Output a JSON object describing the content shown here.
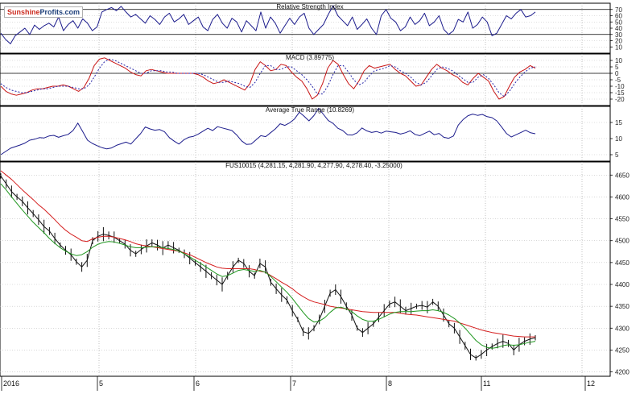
{
  "logo": {
    "part1": "Sunshine",
    "part2": "Profits.com"
  },
  "chart_data": [
    {
      "type": "line",
      "title": "Relative Strength Index",
      "ylim": [
        0,
        80
      ],
      "yticks": [
        "70",
        "60",
        "50",
        "40",
        "30",
        "20",
        "10"
      ],
      "reference_lines": [
        30,
        70
      ],
      "series": [
        {
          "color": "#1c1c8c",
          "values": [
            32,
            22,
            15,
            28,
            34,
            40,
            30,
            45,
            38,
            44,
            48,
            42,
            58,
            36,
            46,
            52,
            40,
            55,
            48,
            36,
            42,
            66,
            70,
            73,
            68,
            75,
            66,
            58,
            62,
            55,
            48,
            60,
            54,
            46,
            58,
            64,
            50,
            55,
            62,
            46,
            52,
            58,
            42,
            36,
            54,
            62,
            48,
            40,
            56,
            50,
            34,
            52,
            44,
            36,
            66,
            40,
            58,
            48,
            32,
            44,
            56,
            46,
            58,
            64,
            40,
            30,
            38,
            46,
            62,
            76,
            60,
            52,
            44,
            58,
            38,
            46,
            55,
            40,
            30,
            60,
            70,
            56,
            50,
            36,
            42,
            58,
            46,
            52,
            64,
            44,
            50,
            60,
            38,
            30,
            36,
            54,
            50,
            66,
            40,
            46,
            58,
            50,
            28,
            32,
            46,
            60,
            55,
            64,
            70,
            58,
            60,
            66
          ]
        }
      ]
    },
    {
      "type": "line",
      "title": "MACD (3.89775)",
      "ylim": [
        -25,
        15
      ],
      "yticks": [
        "10",
        "5",
        "0",
        "-5",
        "-10",
        "-15",
        "-20"
      ],
      "series": [
        {
          "color": "#c81414",
          "values": [
            -10,
            -14,
            -16,
            -17,
            -16,
            -15,
            -13,
            -12,
            -12,
            -11,
            -10,
            -10,
            -9,
            -10,
            -12,
            -14,
            -11,
            -4,
            6,
            11,
            12,
            10,
            8,
            6,
            4,
            1,
            -1,
            -2,
            2,
            3,
            2,
            1,
            0,
            0,
            0,
            0,
            0,
            0,
            -1,
            -3,
            -6,
            -8,
            -7,
            -5,
            -7,
            -9,
            -11,
            -13,
            -8,
            3,
            9,
            6,
            2,
            3,
            7,
            6,
            1,
            -3,
            -6,
            -12,
            -20,
            -17,
            -8,
            4,
            10,
            7,
            -1,
            -8,
            -12,
            -6,
            2,
            6,
            4,
            5,
            6,
            7,
            3,
            0,
            -2,
            -6,
            -10,
            -9,
            -3,
            3,
            7,
            4,
            2,
            -1,
            -3,
            -7,
            -9,
            -4,
            0,
            -3,
            -6,
            -14,
            -20,
            -18,
            -10,
            -3,
            1,
            3,
            6,
            4
          ]
        },
        {
          "color": "#2424a8",
          "dashed": true,
          "values": [
            -8,
            -11,
            -13,
            -14,
            -15,
            -15,
            -14,
            -13,
            -12,
            -12,
            -11,
            -10,
            -10,
            -10,
            -11,
            -12,
            -12,
            -9,
            -3,
            4,
            9,
            11,
            10,
            8,
            6,
            4,
            2,
            0,
            0,
            2,
            2,
            2,
            1,
            1,
            0,
            0,
            0,
            0,
            0,
            -1,
            -3,
            -5,
            -7,
            -7,
            -6,
            -7,
            -8,
            -10,
            -11,
            -7,
            0,
            6,
            6,
            3,
            3,
            5,
            5,
            2,
            -1,
            -5,
            -10,
            -16,
            -16,
            -10,
            -1,
            6,
            6,
            1,
            -5,
            -9,
            -7,
            -2,
            2,
            3,
            4,
            6,
            5,
            2,
            0,
            -3,
            -7,
            -9,
            -7,
            -2,
            3,
            5,
            4,
            2,
            -1,
            -4,
            -7,
            -7,
            -3,
            -1,
            -4,
            -9,
            -15,
            -18,
            -14,
            -8,
            -3,
            1,
            4,
            5
          ]
        }
      ]
    },
    {
      "type": "line",
      "title": "Average True Range (10.8269)",
      "ylim": [
        3,
        20
      ],
      "yticks": [
        "15",
        "10",
        "5"
      ],
      "series": [
        {
          "color": "#1c1c8c",
          "values": [
            5,
            6,
            7,
            7.5,
            8,
            8.6,
            9.5,
            9.8,
            10.3,
            10.2,
            10.8,
            11,
            10.4,
            10.9,
            11.3,
            12.5,
            14.8,
            12.2,
            9.5,
            8.5,
            7.8,
            7.2,
            6.8,
            7.1,
            7.9,
            8.4,
            8.9,
            8.3,
            9.9,
            11.5,
            13.6,
            13,
            12.6,
            12.8,
            12.1,
            10.3,
            9.2,
            8.3,
            9.6,
            10.4,
            10.7,
            11.4,
            12.3,
            13.2,
            12.5,
            13.7,
            13.3,
            12.9,
            12.5,
            11.1,
            9.3,
            8.2,
            8.3,
            9.6,
            10.9,
            10.6,
            11.8,
            13,
            14.6,
            14.1,
            14.9,
            16.1,
            18.2,
            16.9,
            15.5,
            17.1,
            19.4,
            17.5,
            15.6,
            14.7,
            13.2,
            12.5,
            11.2,
            11.1,
            11.8,
            13.3,
            12.4,
            11.9,
            12.2,
            11.7,
            12.3,
            12.1,
            11.9,
            11.4,
            11.8,
            12.4,
            11.3,
            10.9,
            11.6,
            12.3,
            11.2,
            11.6,
            10.4,
            10.1,
            10.8,
            14.2,
            15.9,
            17.1,
            17.6,
            17.2,
            17.5,
            16.8,
            16.5,
            15.5,
            13.6,
            11.6,
            10.5,
            11.2,
            11.9,
            12.6,
            11.8,
            11.5
          ]
        }
      ]
    },
    {
      "type": "line",
      "title": "FUS10015 (4,281.15, 4,281.90, 4,277.90, 4,278.40, -3.25000)",
      "ylim": [
        4190,
        4680
      ],
      "yticks": [
        "4650",
        "4600",
        "4550",
        "4500",
        "4450",
        "4400",
        "4350",
        "4300",
        "4250",
        "4200"
      ],
      "xticks": [
        "2016",
        "5",
        "6",
        "7",
        "8",
        "11",
        "12"
      ],
      "series": [
        {
          "color": "#111111",
          "values": [
            4648,
            4630,
            4612,
            4600,
            4590,
            4575,
            4562,
            4548,
            4532,
            4522,
            4505,
            4490,
            4478,
            4468,
            4452,
            4440,
            4455,
            4500,
            4510,
            4515,
            4512,
            4508,
            4500,
            4492,
            4478,
            4470,
            4480,
            4488,
            4495,
            4490,
            4483,
            4490,
            4484,
            4478,
            4470,
            4460,
            4450,
            4440,
            4430,
            4420,
            4410,
            4400,
            4420,
            4440,
            4455,
            4448,
            4430,
            4420,
            4448,
            4440,
            4405,
            4390,
            4376,
            4364,
            4340,
            4320,
            4292,
            4288,
            4300,
            4320,
            4350,
            4380,
            4388,
            4372,
            4350,
            4330,
            4300,
            4290,
            4300,
            4310,
            4325,
            4340,
            4355,
            4360,
            4350,
            4340,
            4345,
            4350,
            4352,
            4348,
            4360,
            4350,
            4330,
            4310,
            4300,
            4280,
            4260,
            4240,
            4232,
            4240,
            4250,
            4258,
            4265,
            4270,
            4265,
            4250,
            4262,
            4270,
            4275,
            4278
          ]
        },
        {
          "color": "#d41e1e",
          "values": [
            4660,
            4650,
            4640,
            4628,
            4616,
            4605,
            4594,
            4582,
            4572,
            4560,
            4548,
            4535,
            4524,
            4515,
            4508,
            4500,
            4498,
            4504,
            4508,
            4510,
            4510,
            4508,
            4505,
            4502,
            4498,
            4493,
            4490,
            4488,
            4486,
            4484,
            4482,
            4480,
            4478,
            4476,
            4472,
            4468,
            4462,
            4456,
            4450,
            4445,
            4440,
            4437,
            4436,
            4436,
            4436,
            4436,
            4436,
            4434,
            4430,
            4428,
            4420,
            4413,
            4405,
            4398,
            4390,
            4380,
            4372,
            4365,
            4360,
            4357,
            4354,
            4350,
            4348,
            4346,
            4344,
            4342,
            4340,
            4338,
            4337,
            4336,
            4336,
            4336,
            4336,
            4336,
            4334,
            4332,
            4331,
            4330,
            4328,
            4326,
            4324,
            4322,
            4320,
            4318,
            4316,
            4312,
            4308,
            4304,
            4300,
            4296,
            4293,
            4290,
            4288,
            4286,
            4284,
            4282,
            4281,
            4280,
            4280,
            4280
          ]
        },
        {
          "color": "#1e961e",
          "values": [
            4630,
            4616,
            4600,
            4585,
            4570,
            4556,
            4542,
            4530,
            4518,
            4505,
            4494,
            4484,
            4476,
            4470,
            4466,
            4468,
            4475,
            4485,
            4492,
            4496,
            4498,
            4497,
            4494,
            4490,
            4486,
            4484,
            4484,
            4485,
            4486,
            4486,
            4484,
            4482,
            4480,
            4476,
            4470,
            4463,
            4455,
            4448,
            4440,
            4432,
            4424,
            4418,
            4420,
            4426,
            4432,
            4434,
            4432,
            4430,
            4432,
            4428,
            4418,
            4406,
            4394,
            4382,
            4368,
            4352,
            4336,
            4322,
            4314,
            4316,
            4324,
            4336,
            4346,
            4348,
            4344,
            4338,
            4328,
            4320,
            4316,
            4316,
            4320,
            4326,
            4332,
            4336,
            4338,
            4338,
            4338,
            4339,
            4340,
            4340,
            4342,
            4340,
            4336,
            4330,
            4322,
            4312,
            4300,
            4286,
            4272,
            4262,
            4256,
            4254,
            4256,
            4260,
            4262,
            4261,
            4262,
            4265,
            4268,
            4270
          ]
        }
      ]
    }
  ]
}
